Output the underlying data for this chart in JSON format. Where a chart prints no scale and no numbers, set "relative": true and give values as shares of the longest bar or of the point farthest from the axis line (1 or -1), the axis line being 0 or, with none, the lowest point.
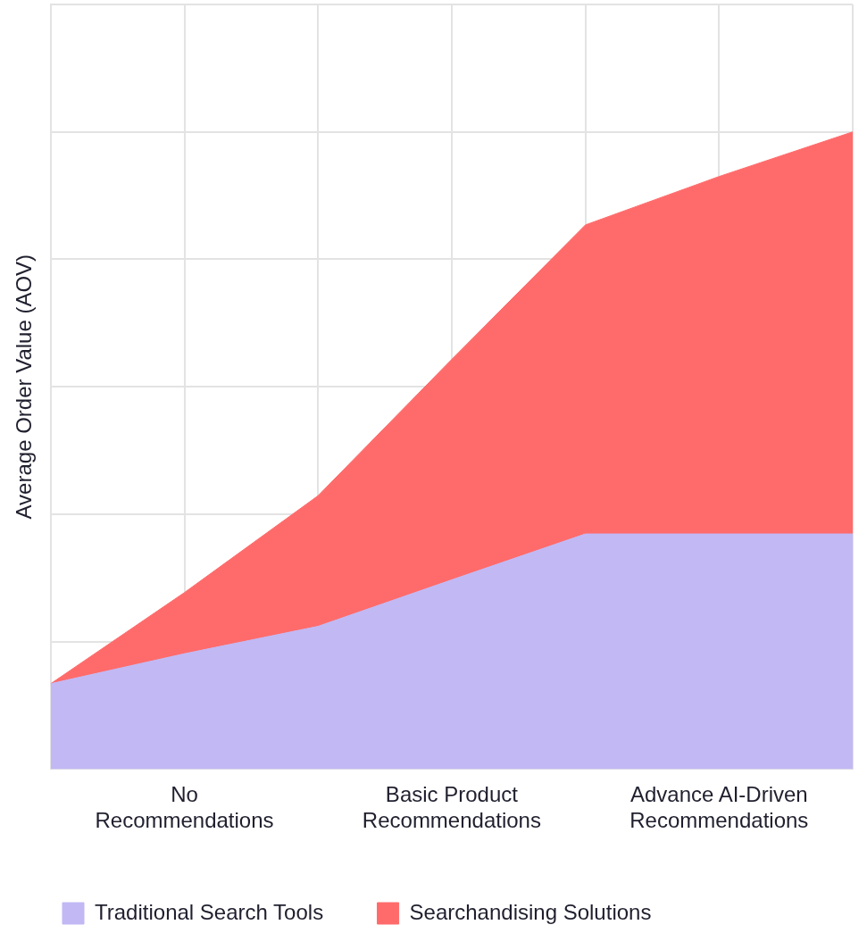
{
  "chart_data": {
    "type": "area",
    "ylabel": "Average Order Value (AOV)",
    "categories": [
      null,
      "No Recommendations",
      null,
      "Basic Product Recommendations",
      null,
      "Advance AI-Driven Recommendations",
      null
    ],
    "relative": true,
    "stacked": true,
    "grid": true,
    "legend": "bottom left",
    "marker": "none",
    "series": [
      {
        "name": "Traditional Search Tools",
        "color": "#c1b8f4",
        "values": [
          0.134,
          0.181,
          0.224,
          0.297,
          0.369,
          0.369,
          0.369
        ]
      },
      {
        "name": "Searchandising Solutions",
        "color": "#ff6b6b",
        "values": [
          0,
          0.096,
          0.205,
          0.346,
          0.485,
          0.561,
          0.631
        ]
      }
    ]
  }
}
